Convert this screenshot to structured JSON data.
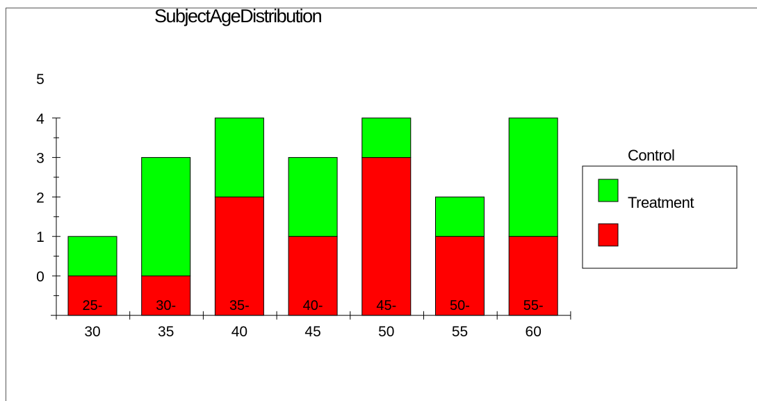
{
  "chart_data": {
    "type": "bar",
    "stacked": true,
    "title": "SubjectAgeDistribution",
    "xlabel": "",
    "ylabel": "",
    "categories": [
      "30",
      "35",
      "40",
      "45",
      "50",
      "55",
      "60"
    ],
    "bar_labels": [
      "25-",
      "30-",
      "35-",
      "40-",
      "45-",
      "50-",
      "55-"
    ],
    "y_ticks": [
      "0",
      "1",
      "2",
      "3",
      "4",
      "5"
    ],
    "ylim": [
      -1,
      5
    ],
    "series": [
      {
        "name": "",
        "color": "#ff0000",
        "values": [
          0,
          0,
          2,
          1,
          3,
          1,
          1
        ]
      },
      {
        "name": "",
        "color": "#00ff00",
        "values": [
          1,
          3,
          2,
          2,
          1,
          1,
          3
        ]
      }
    ],
    "legend": {
      "title": "Control",
      "entry_label": "Treatment",
      "swatch_colors": [
        "#00ff00",
        "#ff0000"
      ],
      "placement": "right"
    },
    "grid": false
  }
}
